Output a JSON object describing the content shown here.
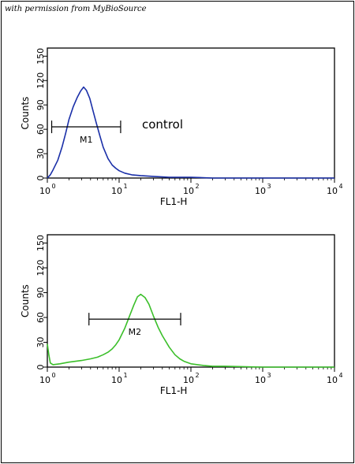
{
  "credit": "with permission from MyBioSource",
  "chart_data": [
    {
      "type": "line",
      "xlabel": "FL1-H",
      "ylabel": "Counts",
      "x_scale": "log",
      "xlim": [
        1,
        10000
      ],
      "ylim": [
        0,
        160
      ],
      "xticks": [
        1,
        10,
        100,
        1000,
        10000
      ],
      "yticks": [
        0,
        30,
        60,
        90,
        120,
        150
      ],
      "grid": false,
      "series": [
        {
          "color": "#1a2fa8",
          "x": [
            1.0,
            1.1,
            1.2,
            1.4,
            1.6,
            1.8,
            2.0,
            2.3,
            2.6,
            2.9,
            3.2,
            3.5,
            3.9,
            4.3,
            4.8,
            5.4,
            6.0,
            7.0,
            8.0,
            9.0,
            10,
            12,
            15,
            20,
            30,
            50,
            100,
            200,
            1000,
            10000
          ],
          "y": [
            0,
            4,
            10,
            22,
            38,
            55,
            72,
            88,
            99,
            107,
            112,
            108,
            98,
            84,
            68,
            52,
            38,
            24,
            16,
            12,
            9,
            6,
            4,
            3,
            2,
            1,
            1,
            0,
            0,
            0
          ]
        }
      ],
      "markers": [
        {
          "label": "M1",
          "x_start": 1.15,
          "x_end": 10.5,
          "y": 63
        }
      ],
      "annotations": [
        "control"
      ]
    },
    {
      "type": "line",
      "xlabel": "FL1-H",
      "ylabel": "Counts",
      "x_scale": "log",
      "xlim": [
        1,
        10000
      ],
      "ylim": [
        0,
        160
      ],
      "xticks": [
        1,
        10,
        100,
        1000,
        10000
      ],
      "yticks": [
        0,
        30,
        60,
        90,
        120,
        150
      ],
      "grid": false,
      "series": [
        {
          "color": "#3bbf2a",
          "x": [
            1.0,
            1.05,
            1.1,
            1.2,
            1.5,
            2.0,
            3.0,
            4.0,
            5.0,
            6.0,
            7.0,
            8.0,
            9.0,
            10,
            12,
            14,
            16,
            18,
            20,
            23,
            26,
            30,
            35,
            40,
            50,
            60,
            70,
            80,
            100,
            150,
            200,
            300,
            1000,
            10000
          ],
          "y": [
            28,
            15,
            5,
            3,
            4,
            6,
            8,
            10,
            12,
            15,
            18,
            22,
            27,
            33,
            47,
            62,
            75,
            85,
            88,
            84,
            76,
            62,
            48,
            38,
            24,
            15,
            10,
            7,
            4,
            2,
            1,
            1,
            0,
            0
          ]
        }
      ],
      "markers": [
        {
          "label": "M2",
          "x_start": 3.8,
          "x_end": 72,
          "y": 58
        }
      ],
      "annotations": []
    }
  ]
}
